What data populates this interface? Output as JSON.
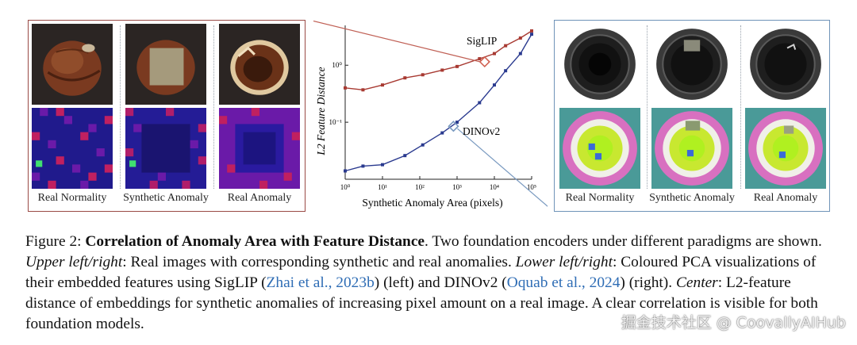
{
  "left_panel": {
    "captions": [
      "Real Normality",
      "Synthetic Anomaly",
      "Real Anomaly"
    ]
  },
  "right_panel": {
    "captions": [
      "Real Normality",
      "Synthetic Anomaly",
      "Real Anomaly"
    ]
  },
  "chart_data": {
    "type": "line",
    "xlabel": "Synthetic Anomaly Area (pixels)",
    "ylabel": "L2 Feature Distance",
    "x_scale": "log",
    "y_scale": "log",
    "x_ticks": [
      "10⁰",
      "10¹",
      "10²",
      "10³",
      "10⁴",
      "10⁵"
    ],
    "y_ticks": [
      "10⁰",
      "10⁻¹"
    ],
    "series": [
      {
        "name": "SigLIP",
        "color": "#a83a32",
        "x": [
          1,
          3,
          10,
          40,
          120,
          400,
          1000,
          4000,
          10000,
          20000,
          50000,
          100000
        ],
        "y": [
          0.4,
          0.37,
          0.45,
          0.6,
          0.68,
          0.82,
          0.95,
          1.3,
          1.6,
          2.2,
          3.0,
          4.0
        ]
      },
      {
        "name": "DINOv2",
        "color": "#2a3a8f",
        "x": [
          1,
          3,
          10,
          40,
          120,
          400,
          1000,
          4000,
          10000,
          20000,
          50000,
          100000
        ],
        "y": [
          0.014,
          0.017,
          0.018,
          0.026,
          0.04,
          0.065,
          0.1,
          0.22,
          0.45,
          0.8,
          1.6,
          3.5
        ]
      }
    ],
    "highlight": [
      {
        "series": "SigLIP",
        "x": 5500,
        "y": 1.15
      },
      {
        "series": "DINOv2",
        "x": 800,
        "y": 0.085
      }
    ]
  },
  "caption": {
    "label": "Figure 2:",
    "title": "Correlation of Anomaly Area with Feature Distance",
    "s1": ". Two foundation encoders under different paradigms are shown. ",
    "ul_label": "Upper left/right",
    "s2": ": Real images with corresponding synthetic and real anomalies. ",
    "ll_label": "Lower left/right",
    "s3": ": Coloured PCA visualizations of their embedded features using SigLIP (",
    "ref1": "Zhai et al., 2023b",
    "s4": ") (left) and DINOv2 (",
    "ref2": "Oquab et al., 2024",
    "s5": ") (right). ",
    "center_label": "Center",
    "s6": ": L2-feature distance of embeddings for synthetic anomalies of increasing pixel amount on a real image. A clear correlation is visible for both foundation models."
  },
  "watermark": "掘金技术社区 @ CoovallyAIHub"
}
